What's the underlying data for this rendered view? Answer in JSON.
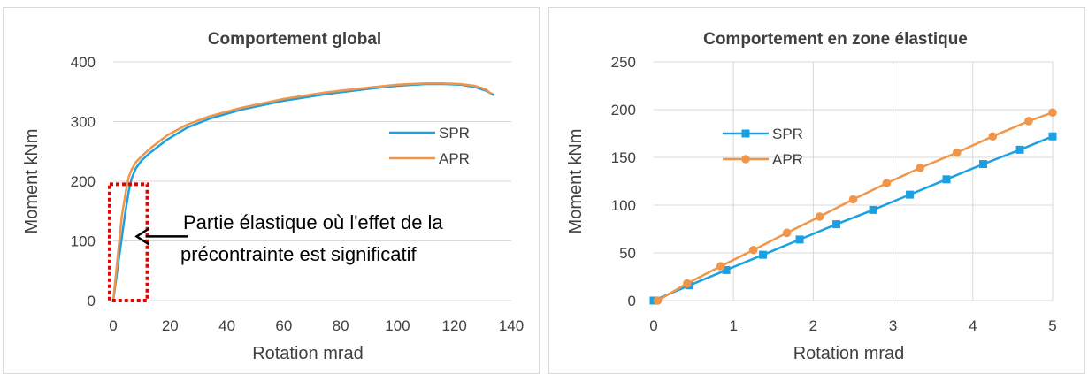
{
  "colors": {
    "spr": "#1ba1e2",
    "apr": "#f0964a",
    "grid": "#d9d9d9",
    "text": "#404040",
    "highlight": "#e60000"
  },
  "chart_data": [
    {
      "type": "line",
      "title": "Comportement global",
      "xlabel": "Rotation mrad",
      "ylabel": "Moment kNm",
      "xlim": [
        0,
        140
      ],
      "ylim": [
        0,
        400
      ],
      "xticks": [
        "0",
        "20",
        "40",
        "60",
        "80",
        "100",
        "120",
        "140"
      ],
      "yticks": [
        "0",
        "100",
        "200",
        "300",
        "400"
      ],
      "grid": "horizontal",
      "legend_position": "right",
      "series": [
        {
          "name": "SPR",
          "color": "#1ba1e2",
          "x": [
            0,
            2,
            4,
            5.5,
            6.5,
            8,
            10,
            13,
            19,
            26,
            34,
            45,
            60,
            75,
            90,
            100,
            110,
            116,
            122,
            127,
            131,
            134
          ],
          "y": [
            0,
            70,
            140,
            185,
            205,
            222,
            235,
            248,
            270,
            290,
            305,
            320,
            335,
            346,
            355,
            360,
            363,
            363,
            362,
            358,
            352,
            344
          ]
        },
        {
          "name": "APR",
          "color": "#f0964a",
          "x": [
            0,
            1.5,
            3,
            4.5,
            5.5,
            6.5,
            8,
            10,
            13,
            19,
            26,
            34,
            45,
            60,
            75,
            90,
            100,
            110,
            116,
            122,
            127,
            131,
            133
          ],
          "y": [
            0,
            70,
            140,
            185,
            208,
            220,
            232,
            242,
            255,
            277,
            295,
            309,
            323,
            338,
            349,
            357,
            362,
            364,
            364,
            363,
            360,
            354,
            346
          ]
        }
      ],
      "annotation": {
        "text_line1": "Partie élastique où l'effet de la",
        "text_line2": "précontrainte est significatif",
        "box_x": [
          0,
          12
        ],
        "box_y": [
          0,
          195
        ],
        "arrow_target": [
          7,
          112
        ]
      }
    },
    {
      "type": "line",
      "title": "Comportement en zone élastique",
      "xlabel": "Rotation mrad",
      "ylabel": "Moment kNm",
      "xlim": [
        0,
        5
      ],
      "ylim": [
        0,
        250
      ],
      "xticks": [
        "0",
        "1",
        "2",
        "3",
        "4",
        "5"
      ],
      "yticks": [
        "0",
        "50",
        "100",
        "150",
        "200",
        "250"
      ],
      "grid": "both",
      "legend_position": "top-left",
      "series": [
        {
          "name": "SPR",
          "color": "#1ba1e2",
          "marker": "square",
          "x": [
            0,
            0.45,
            0.91,
            1.37,
            1.83,
            2.29,
            2.75,
            3.21,
            3.67,
            4.13,
            4.59,
            5.0
          ],
          "y": [
            0,
            16,
            32,
            48,
            64,
            80,
            95,
            111,
            127,
            143,
            158,
            172
          ]
        },
        {
          "name": "APR",
          "color": "#f0964a",
          "marker": "circle",
          "x": [
            0.05,
            0.42,
            0.84,
            1.25,
            1.67,
            2.08,
            2.5,
            2.92,
            3.34,
            3.8,
            4.25,
            4.7,
            5.0
          ],
          "y": [
            0,
            18,
            36,
            53,
            71,
            88,
            106,
            123,
            139,
            155,
            172,
            188,
            197
          ]
        }
      ]
    }
  ]
}
